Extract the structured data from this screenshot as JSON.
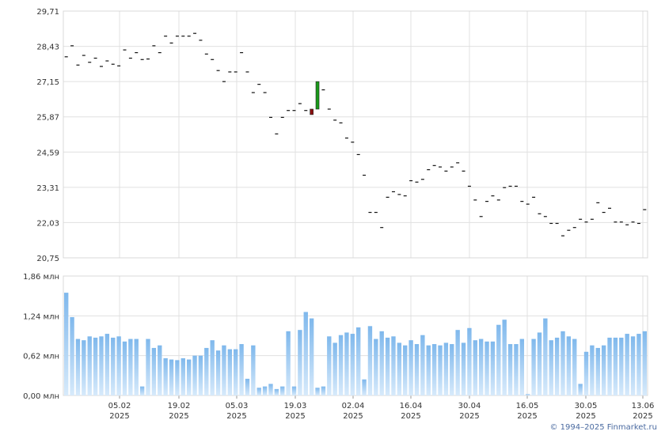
{
  "chart_data": [
    {
      "type": "candlestick",
      "y_ticks": [
        "29,71",
        "28,43",
        "27,15",
        "25,87",
        "24,59",
        "23,31",
        "22,03",
        "20,75"
      ],
      "ylim": [
        20.75,
        29.71
      ],
      "up_color": "#1a9a1a",
      "down_color": "#8b1010",
      "series": [
        {
          "values": [
            28.05,
            28.45,
            27.75,
            28.1,
            27.85,
            28.0,
            27.7,
            27.9,
            27.78,
            27.72,
            28.3,
            28.0,
            28.2,
            27.95,
            27.97,
            28.45,
            28.2,
            28.8,
            28.55,
            28.8,
            28.8,
            28.8,
            28.9,
            28.65,
            28.15,
            27.95,
            27.55,
            27.15,
            27.5,
            27.5,
            28.2,
            27.5,
            26.75,
            27.05,
            26.75,
            25.85,
            25.25,
            25.85,
            26.1,
            26.1,
            26.35,
            26.1,
            26.15,
            27.1,
            26.85,
            26.15,
            25.75,
            25.65,
            25.1,
            24.95,
            24.5,
            23.75,
            22.4,
            22.4,
            21.85,
            22.95,
            23.15,
            23.05,
            23.0,
            23.55,
            23.5,
            23.6,
            23.95,
            24.1,
            24.05,
            23.9,
            24.05,
            24.2,
            23.9,
            23.35,
            22.85,
            22.25,
            22.8,
            23.0,
            22.85,
            23.3,
            23.35,
            23.35,
            22.8,
            22.7,
            22.95,
            22.35,
            22.25,
            22.0,
            22.0,
            21.55,
            21.75,
            21.85,
            22.15,
            22.05,
            22.15,
            22.75,
            22.4,
            22.55,
            22.05,
            22.05,
            21.95,
            22.05,
            22.0,
            22.5
          ]
        }
      ],
      "special_candles": [
        {
          "index": 42,
          "open": 26.15,
          "close": 25.95,
          "direction": "down"
        },
        {
          "index": 43,
          "open": 26.15,
          "close": 27.15,
          "direction": "up"
        }
      ]
    },
    {
      "type": "bar",
      "unit": "млн",
      "y_ticks": [
        "1,86 млн",
        "1,24 млн",
        "0,62 млн",
        "0,00 млн"
      ],
      "ylim": [
        0,
        1.86
      ],
      "x_ticks": [
        {
          "day": "05.02",
          "year": "2025"
        },
        {
          "day": "19.02",
          "year": "2025"
        },
        {
          "day": "05.03",
          "year": "2025"
        },
        {
          "day": "19.03",
          "year": "2025"
        },
        {
          "day": "02.04",
          "year": "2025"
        },
        {
          "day": "16.04",
          "year": "2025"
        },
        {
          "day": "30.04",
          "year": "2025"
        },
        {
          "day": "16.05",
          "year": "2025"
        },
        {
          "day": "30.05",
          "year": "2025"
        },
        {
          "day": "13.06",
          "year": "2025"
        }
      ],
      "bar_color": "#7fb8ec",
      "series": [
        {
          "values": [
            1.6,
            1.22,
            0.88,
            0.86,
            0.92,
            0.9,
            0.92,
            0.96,
            0.9,
            0.92,
            0.84,
            0.88,
            0.88,
            0.14,
            0.88,
            0.74,
            0.78,
            0.58,
            0.56,
            0.55,
            0.58,
            0.56,
            0.62,
            0.62,
            0.74,
            0.86,
            0.7,
            0.78,
            0.72,
            0.72,
            0.8,
            0.26,
            0.78,
            0.12,
            0.14,
            0.18,
            0.1,
            0.14,
            1.0,
            0.14,
            1.02,
            1.3,
            1.2,
            0.12,
            0.14,
            0.92,
            0.82,
            0.94,
            0.98,
            0.96,
            1.06,
            0.25,
            1.08,
            0.88,
            1.0,
            0.9,
            0.92,
            0.82,
            0.78,
            0.86,
            0.8,
            0.94,
            0.78,
            0.8,
            0.78,
            0.82,
            0.8,
            1.02,
            0.82,
            1.05,
            0.86,
            0.88,
            0.84,
            0.84,
            1.1,
            1.18,
            0.8,
            0.8,
            0.88,
            0.02,
            0.88,
            0.98,
            1.2,
            0.86,
            0.9,
            1.0,
            0.92,
            0.88,
            0.18,
            0.68,
            0.78,
            0.74,
            0.78,
            0.9,
            0.9,
            0.9,
            0.96,
            0.92,
            0.96,
            1.0
          ]
        }
      ]
    }
  ],
  "copyright": "© 1994–2025 Finmarket.ru"
}
